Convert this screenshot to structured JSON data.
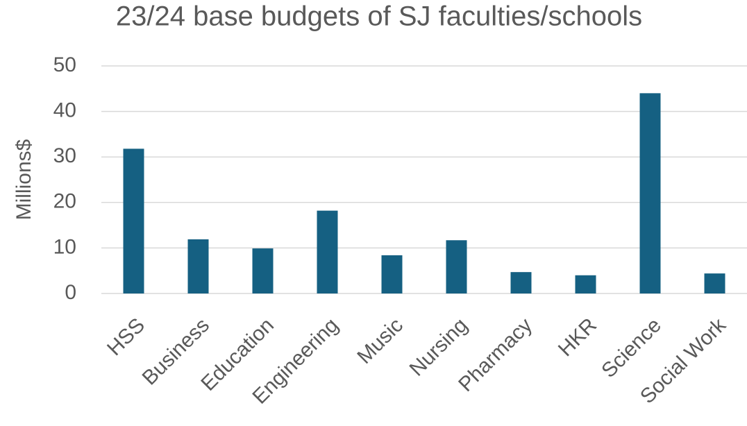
{
  "chart_data": {
    "type": "bar",
    "title": "23/24 base budgets of SJ faculties/schools",
    "y_label": "Millions$",
    "categories": [
      "HSS",
      "Business",
      "Education",
      "Engineering",
      "Music",
      "Nursing",
      "Pharmacy",
      "HKR",
      "Science",
      "Social Work"
    ],
    "values": [
      31.8,
      11.9,
      9.9,
      18.2,
      8.4,
      11.7,
      4.7,
      4.0,
      44,
      4.4
    ],
    "color": "#156082",
    "ylim": [
      0,
      50
    ],
    "yticks": [
      0,
      10,
      20,
      30,
      40,
      50
    ],
    "grid": true
  }
}
